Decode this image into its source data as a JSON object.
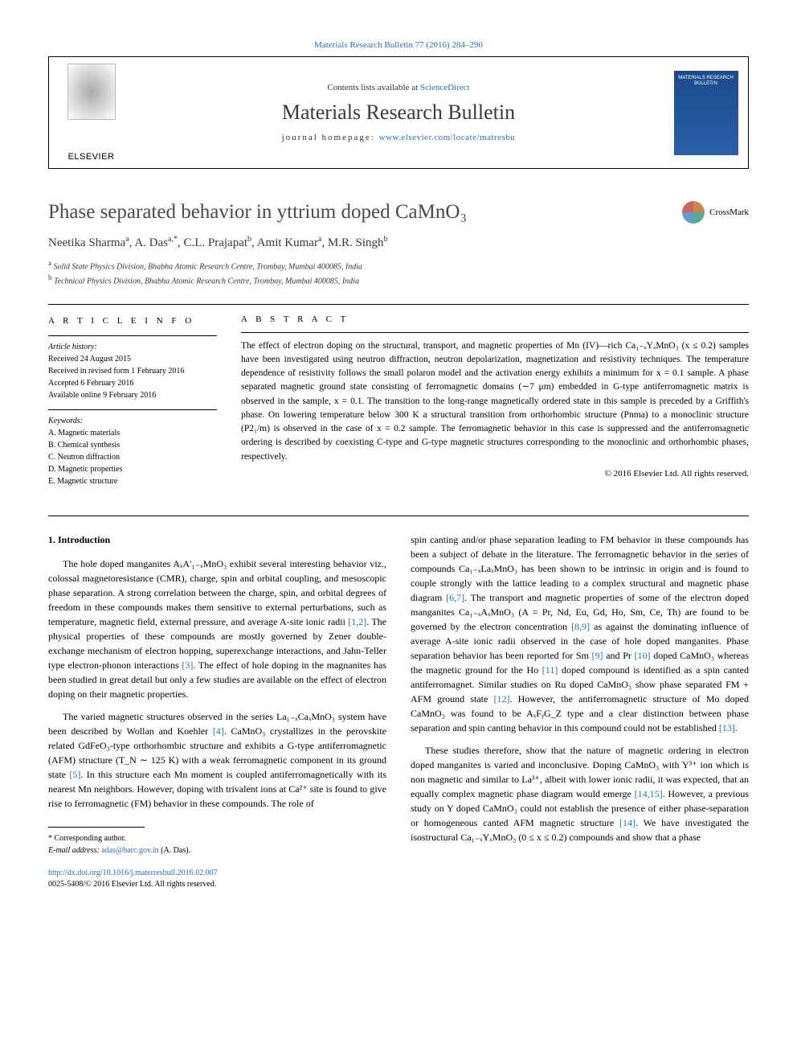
{
  "top_link": "Materials Research Bulletin 77 (2016) 284–290",
  "header": {
    "contents_prefix": "Contents lists available at ",
    "contents_link": "ScienceDirect",
    "journal": "Materials Research Bulletin",
    "homepage_prefix": "journal homepage: ",
    "homepage_url": "www.elsevier.com/locate/matresbu",
    "publisher": "ELSEVIER",
    "cover_text": "MATERIALS RESEARCH BULLETIN"
  },
  "article": {
    "title": "Phase separated behavior in yttrium doped CaMnO₃",
    "crossmark": "CrossMark",
    "authors_html": "Neetika Sharma<sup>a</sup>, A. Das<sup>a,*</sup>, C.L. Prajapat<sup>b</sup>, Amit Kumar<sup>a</sup>, M.R. Singh<sup>b</sup>",
    "affil_a": "Solid State Physics Division, Bhabha Atomic Research Centre, Trombay, Mumbai 400085, India",
    "affil_b": "Technical Physics Division, Bhabha Atomic Research Centre, Trombay, Mumbai 400085, India"
  },
  "info": {
    "heading": "A R T I C L E  I N F O",
    "history_label": "Article history:",
    "received": "Received 24 August 2015",
    "revised": "Received in revised form 1 February 2016",
    "accepted": "Accepted 6 February 2016",
    "online": "Available online 9 February 2016",
    "keywords_label": "Keywords:",
    "k1": "A. Magnetic materials",
    "k2": "B. Chemical synthesis",
    "k3": "C. Neutron diffraction",
    "k4": "D. Magnetic properties",
    "k5": "E. Magnetic structure"
  },
  "abstract": {
    "heading": "A B S T R A C T",
    "text": "The effect of electron doping on the structural, transport, and magnetic properties of Mn (IV)—rich Ca₁₋ₓYₓMnO₃ (x ≤ 0.2) samples have been investigated using neutron diffraction, neutron depolarization, magnetization and resistivity techniques. The temperature dependence of resistivity follows the small polaron model and the activation energy exhibits a minimum for x = 0.1 sample. A phase separated magnetic ground state consisting of ferromagnetic domains (∼7 μm) embedded in G-type antiferromagnetic matrix is observed in the sample, x = 0.1. The transition to the long-range magnetically ordered state in this sample is preceded by a Griffith's phase. On lowering temperature below 300 K a structural transition from orthorhombic structure (Pnma) to a monoclinic structure (P2₁/m) is observed in the case of x = 0.2 sample. The ferromagnetic behavior in this case is suppressed and the antiferromagnetic ordering is described by coexisting C-type and G-type magnetic structures corresponding to the monoclinic and orthorhombic phases, respectively.",
    "copyright": "© 2016 Elsevier Ltd. All rights reserved."
  },
  "body": {
    "section_head": "1. Introduction",
    "col1p1_a": "The hole doped manganites AₓA′₁₋ₓMnO₃ exhibit several interesting behavior viz., colossal magnetoresistance (CMR), charge, spin and orbital coupling, and mesoscopic phase separation. A strong correlation between the charge, spin, and orbital degrees of freedom in these compounds makes them sensitive to external perturbations, such as temperature, magnetic field, external pressure, and average A-site ionic radii ",
    "ref12": "[1,2]",
    "col1p1_b": ". The physical properties of these compounds are mostly governed by Zener double-exchange mechanism of electron hopping, superexchange interactions, and Jahn-Teller type electron-phonon interactions ",
    "ref3": "[3]",
    "col1p1_c": ". The effect of hole doping in the magnanites has been studied in great detail but only a few studies are available on the effect of electron doping on their magnetic properties.",
    "col1p2_a": "The varied magnetic structures observed in the series La₁₋ₓCaₓMnO₃ system have been described by Wollan and Koehler ",
    "ref4": "[4]",
    "col1p2_b": ". CaMnO₃ crystallizes in the perovskite related GdFeO₃-type orthorhombic structure and exhibits a G-type antiferromagnetic (AFM) structure (T_N ∼ 125 K) with a weak ferromagnetic component in its ground state ",
    "ref5": "[5]",
    "col1p2_c": ". In this structure each Mn moment is coupled antiferromagnetically with its nearest Mn neighbors. However, doping with trivalent ions at Ca²⁺ site is found to give rise to ferromagnetic (FM) behavior in these compounds. The role of",
    "col2p1_a": "spin canting and/or phase separation leading to FM behavior in these compounds has been a subject of debate in the literature. The ferromagnetic behavior in the series of compounds Ca₁₋ₓLaₓMnO₃ has been shown to be intrinsic in origin and is found to couple strongly with the lattice leading to a complex structural and magnetic phase diagram ",
    "ref67": "[6,7]",
    "col2p1_b": ". The transport and magnetic properties of some of the electron doped manganites Ca₁₋ₓAₓMnO₃ (A = Pr, Nd, Eu, Gd, Ho, Sm, Ce, Th) are found to be governed by the electron concentration ",
    "ref89": "[8,9]",
    "col2p1_c": " as against the dominating influence of average A-site ionic radii observed in the case of hole doped manganites. Phase separation behavior has been reported for Sm ",
    "ref9": "[9]",
    "col2p1_d": " and Pr ",
    "ref10": "[10]",
    "col2p1_e": " doped CaMnO₃ whereas the magnetic ground for the Ho ",
    "ref11": "[11]",
    "col2p1_f": " doped compound is identified as a spin canted antiferromagnet. Similar studies on Ru doped CaMnO₃ show phase separated FM + AFM ground state ",
    "ref12b": "[12]",
    "col2p1_g": ". However, the antiferromagnetic structure of Mo doped CaMnO₃ was found to be AₓFᵧG_Z type and a clear distinction between phase separation and spin canting behavior in this compound could not be established ",
    "ref13": "[13]",
    "col2p1_h": ".",
    "col2p2_a": "These studies therefore, show that the nature of magnetic ordering in electron doped manganites is varied and inconclusive. Doping CaMnO₃ with Y³⁺ ion which is non magnetic and similar to La³⁺, albeit with lower ionic radii, it was expected, that an equally complex magnetic phase diagram would emerge ",
    "ref1415": "[14,15]",
    "col2p2_b": ". However, a previous study on Y doped CaMnO₃ could not establish the presence of either phase-separation or homogeneous canted AFM magnetic structure ",
    "ref14": "[14]",
    "col2p2_c": ". We have investigated the isostructural Ca₁₋ₓYₓMnO₃ (0 ≤ x ≤ 0.2) compounds and show that a phase"
  },
  "footnote": {
    "corr": "* Corresponding author.",
    "email_label": "E-mail address: ",
    "email": "adas@barc.gov.in",
    "email_who": " (A. Das)."
  },
  "doi": {
    "url": "http://dx.doi.org/10.1016/j.materresbull.2016.02.007",
    "issn": "0025-5408/© 2016 Elsevier Ltd. All rights reserved."
  },
  "colors": {
    "link": "#2a6fb5",
    "text": "#000000",
    "title_gray": "#4a4a4a"
  }
}
